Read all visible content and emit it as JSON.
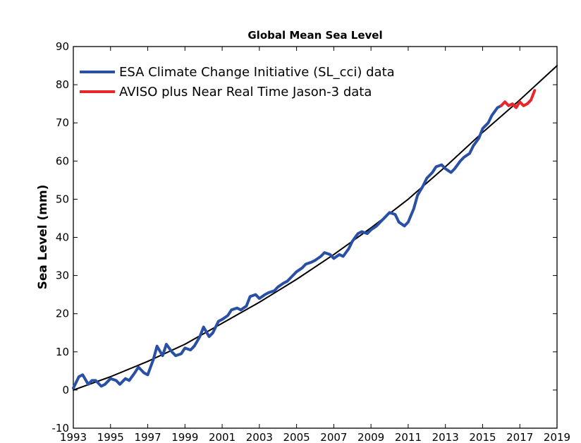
{
  "chart_data": {
    "type": "line",
    "title": "Global Mean Sea Level",
    "xlabel": "",
    "ylabel": "Sea Level (mm)",
    "xlim": [
      1993,
      2019
    ],
    "ylim": [
      -10,
      90
    ],
    "xticks": [
      "1993",
      "1995",
      "1997",
      "1999",
      "2001",
      "2003",
      "2005",
      "2007",
      "2009",
      "2011",
      "2013",
      "2015",
      "2017",
      "2019"
    ],
    "yticks": [
      "-10",
      "0",
      "10",
      "20",
      "30",
      "40",
      "50",
      "60",
      "70",
      "80",
      "90"
    ],
    "legend_position": "top-left",
    "grid": false,
    "series": [
      {
        "name": "ESA Climate Change Initiative (SL_cci) data",
        "color": "#2a50a6",
        "x": [
          1993.0,
          1993.3,
          1993.5,
          1993.8,
          1994.0,
          1994.2,
          1994.5,
          1994.7,
          1995.0,
          1995.3,
          1995.5,
          1995.8,
          1996.0,
          1996.3,
          1996.5,
          1996.8,
          1997.0,
          1997.3,
          1997.5,
          1997.8,
          1998.0,
          1998.3,
          1998.5,
          1998.8,
          1999.0,
          1999.3,
          1999.5,
          1999.8,
          2000.0,
          2000.3,
          2000.5,
          2000.8,
          2001.0,
          2001.3,
          2001.5,
          2001.8,
          2002.0,
          2002.3,
          2002.5,
          2002.8,
          2003.0,
          2003.3,
          2003.5,
          2003.8,
          2004.0,
          2004.3,
          2004.5,
          2004.8,
          2005.0,
          2005.3,
          2005.5,
          2005.8,
          2006.0,
          2006.3,
          2006.5,
          2006.8,
          2007.0,
          2007.3,
          2007.5,
          2007.8,
          2008.0,
          2008.3,
          2008.5,
          2008.8,
          2009.0,
          2009.3,
          2009.5,
          2009.8,
          2010.0,
          2010.3,
          2010.5,
          2010.8,
          2011.0,
          2011.3,
          2011.5,
          2011.8,
          2012.0,
          2012.3,
          2012.5,
          2012.8,
          2013.0,
          2013.3,
          2013.5,
          2013.8,
          2014.0,
          2014.3,
          2014.5,
          2014.8,
          2015.0,
          2015.3,
          2015.5,
          2015.8,
          2016.0
        ],
        "y": [
          0.5,
          3.5,
          4.0,
          1.5,
          2.5,
          2.5,
          1.0,
          1.5,
          3.0,
          2.5,
          1.5,
          3.0,
          2.5,
          4.5,
          6.0,
          4.5,
          4.0,
          8.0,
          11.5,
          9.0,
          12.0,
          10.0,
          9.0,
          9.5,
          11.0,
          10.5,
          11.5,
          14.0,
          16.5,
          14.0,
          15.0,
          18.0,
          18.5,
          19.5,
          21.0,
          21.5,
          21.0,
          22.0,
          24.5,
          25.0,
          24.0,
          25.0,
          25.5,
          26.0,
          27.0,
          28.0,
          28.5,
          30.0,
          31.0,
          32.0,
          33.0,
          33.5,
          34.0,
          35.0,
          36.0,
          35.5,
          34.5,
          35.5,
          35.0,
          37.0,
          39.0,
          41.0,
          41.5,
          41.0,
          42.0,
          43.0,
          44.0,
          45.5,
          46.5,
          46.0,
          44.0,
          43.0,
          44.0,
          47.5,
          51.0,
          53.5,
          55.5,
          57.0,
          58.5,
          59.0,
          58.0,
          57.0,
          58.0,
          60.0,
          61.0,
          62.0,
          64.0,
          66.0,
          68.5,
          70.0,
          72.0,
          74.0,
          74.5
        ]
      },
      {
        "name": "AVISO plus Near Real Time Jason-3 data",
        "color": "#e8262a",
        "x": [
          2016.0,
          2016.2,
          2016.4,
          2016.6,
          2016.8,
          2017.0,
          2017.2,
          2017.4,
          2017.6,
          2017.8
        ],
        "y": [
          74.5,
          75.5,
          74.5,
          75.0,
          74.0,
          75.5,
          74.5,
          75.0,
          76.0,
          78.5
        ]
      },
      {
        "name": "",
        "color": "#000000",
        "x": [
          1993,
          1995,
          1997,
          1999,
          2001,
          2003,
          2005,
          2007,
          2009,
          2011,
          2013,
          2015,
          2017,
          2019
        ],
        "y": [
          0,
          3.5,
          7.5,
          12.0,
          17.5,
          23.0,
          29.0,
          35.5,
          42.5,
          50.0,
          58.5,
          67.5,
          76.0,
          85.0
        ]
      }
    ]
  }
}
